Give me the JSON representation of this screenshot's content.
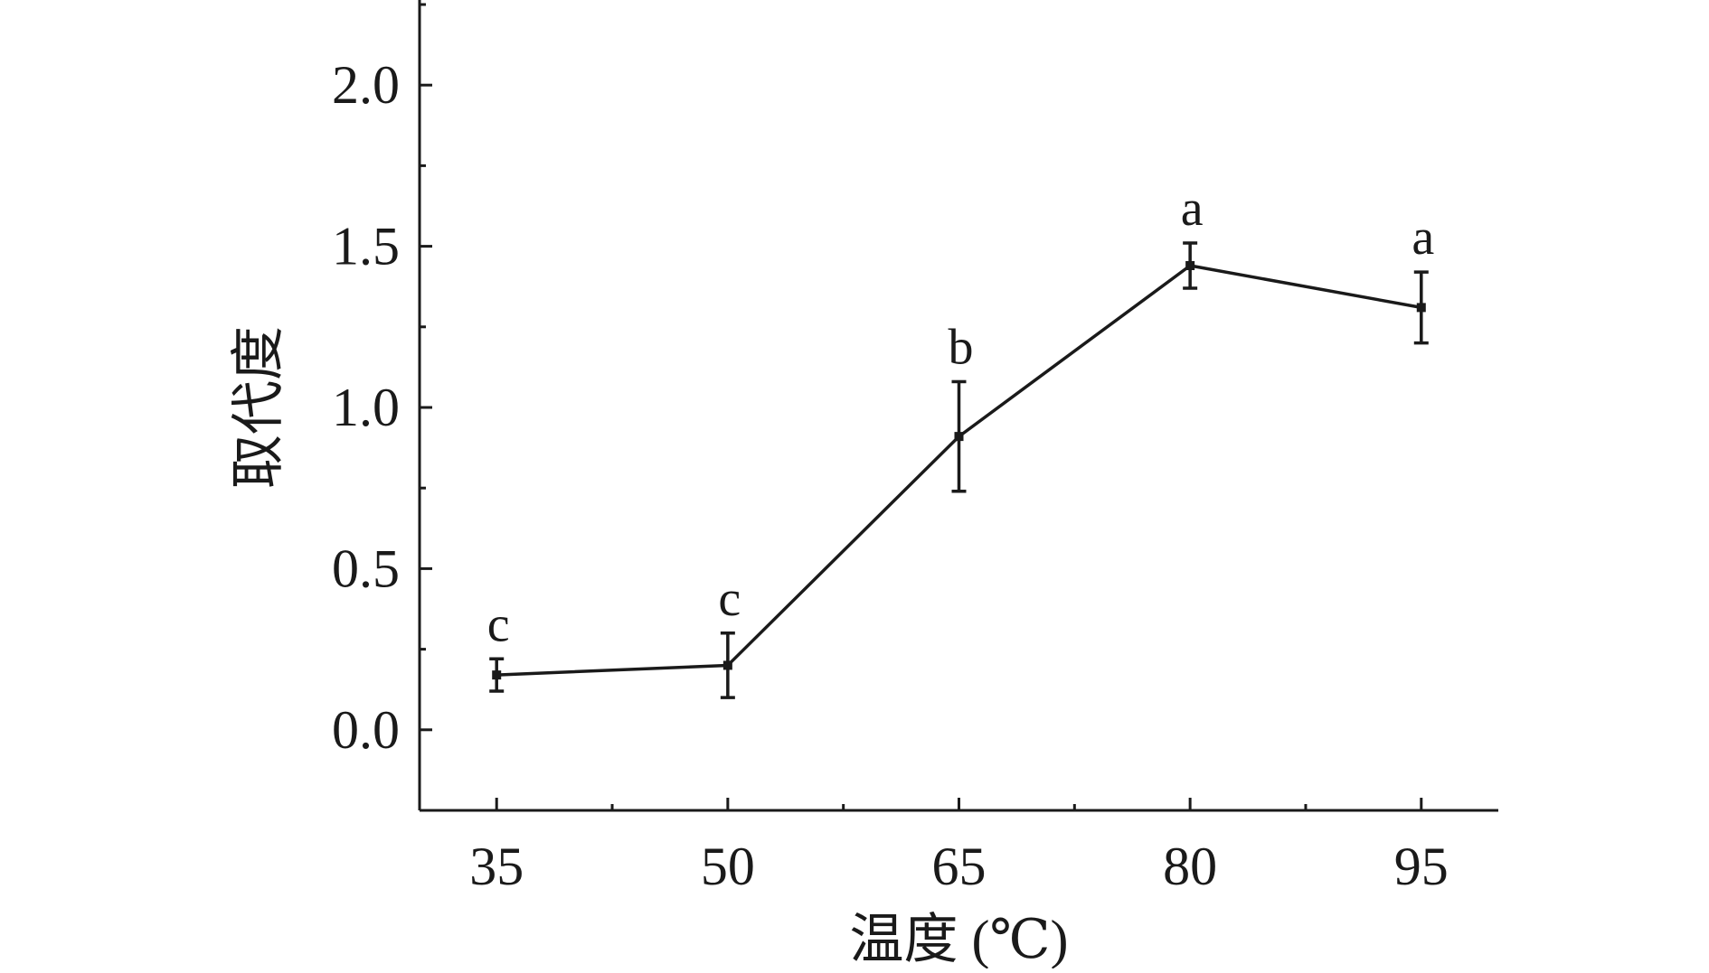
{
  "chart_data": {
    "type": "line",
    "title": "",
    "xlabel": "温度 (℃)",
    "ylabel": "取代度",
    "categories": [
      "35",
      "50",
      "65",
      "80",
      "95"
    ],
    "x": [
      35,
      50,
      65,
      80,
      95
    ],
    "xlim": [
      30,
      100
    ],
    "xticks": [
      35,
      50,
      65,
      80,
      95
    ],
    "ylim": [
      -0.25,
      2.25
    ],
    "yticks": [
      0.0,
      0.5,
      1.0,
      1.5,
      2.0
    ],
    "ytick_labels": [
      "0.0",
      "0.5",
      "1.0",
      "1.5",
      "2.0"
    ],
    "grid": false,
    "legend": "none",
    "series": [
      {
        "values": [
          0.17,
          0.2,
          0.91,
          1.44,
          1.31
        ],
        "error": [
          0.05,
          0.1,
          0.17,
          0.07,
          0.11
        ],
        "labels": [
          "c",
          "c",
          "b",
          "a",
          "a"
        ],
        "color": "#1a1a1a"
      }
    ]
  }
}
